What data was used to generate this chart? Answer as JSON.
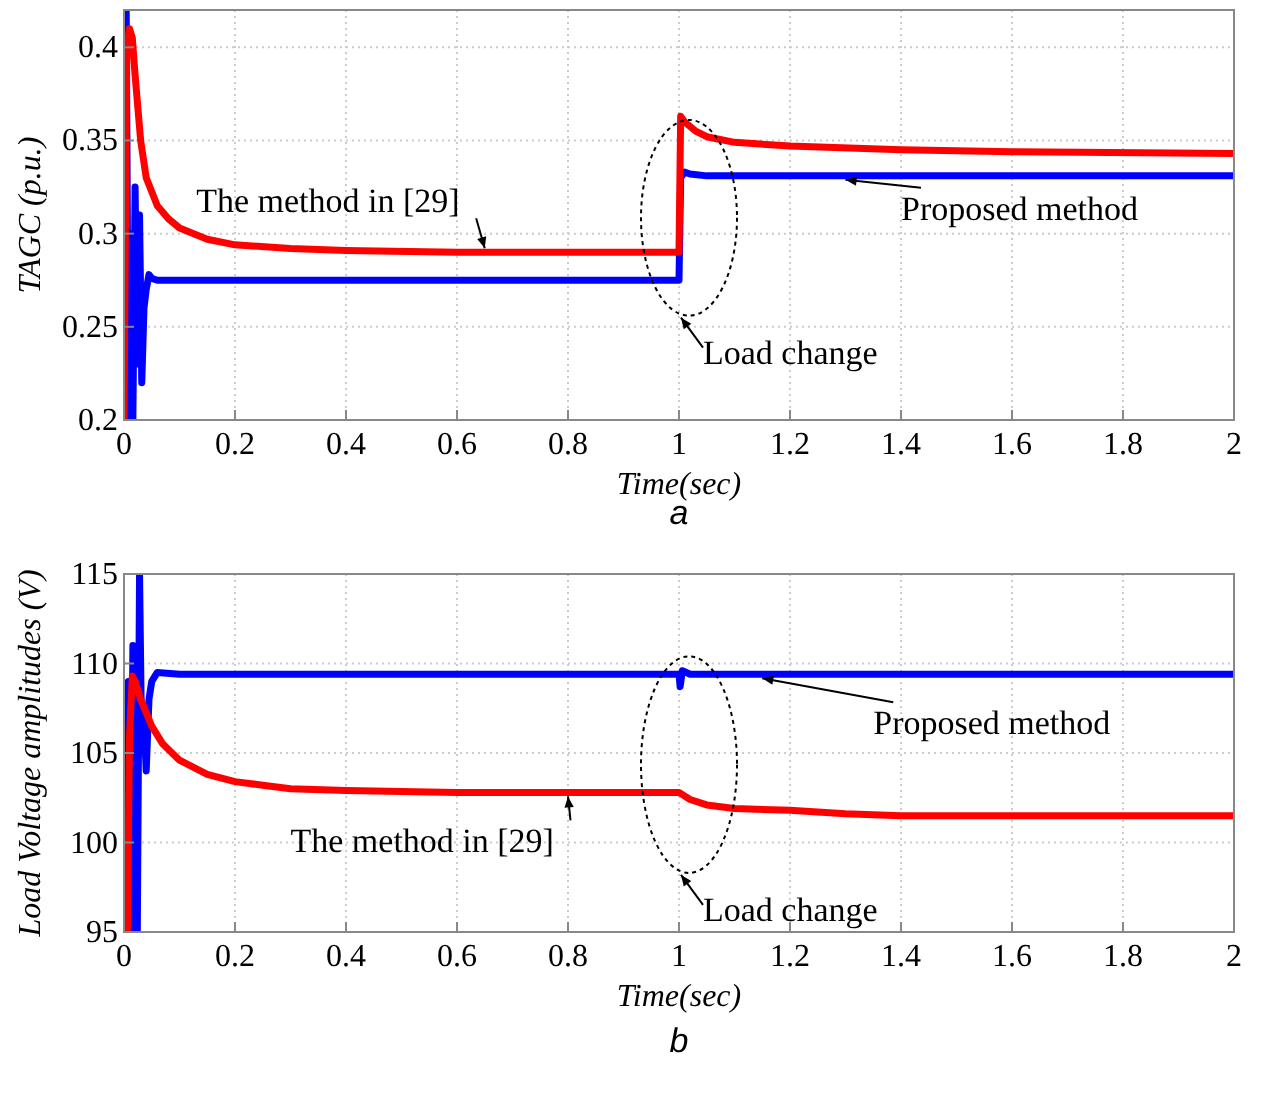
{
  "chart_data": [
    {
      "type": "line",
      "title": "a",
      "xlabel": "Time(sec)",
      "ylabel": "TAGC (p.u.)",
      "xlim": [
        0,
        2
      ],
      "ylim": [
        0.2,
        0.42
      ],
      "xticks": [
        0,
        0.2,
        0.4,
        0.6,
        0.8,
        1,
        1.2,
        1.4,
        1.6,
        1.8,
        2
      ],
      "yticks": [
        0.2,
        0.25,
        0.3,
        0.35,
        0.4
      ],
      "grid": true,
      "marker": "none",
      "line_style": "solid",
      "annotations": [
        "Load change"
      ],
      "series": [
        {
          "name": "The method in [29]",
          "color": "#ff0000",
          "x": [
            0,
            0.005,
            0.01,
            0.015,
            0.02,
            0.03,
            0.04,
            0.06,
            0.08,
            0.1,
            0.15,
            0.2,
            0.3,
            0.4,
            0.6,
            0.8,
            1,
            1.003,
            1.01,
            1.03,
            1.05,
            1.1,
            1.2,
            1.4,
            1.6,
            2
          ],
          "values": [
            0.2,
            0.4,
            0.41,
            0.405,
            0.385,
            0.35,
            0.33,
            0.315,
            0.308,
            0.303,
            0.297,
            0.294,
            0.292,
            0.291,
            0.29,
            0.29,
            0.29,
            0.363,
            0.36,
            0.355,
            0.352,
            0.349,
            0.347,
            0.345,
            0.344,
            0.343
          ]
        },
        {
          "name": "Proposed method",
          "color": "#0000ff",
          "x": [
            0,
            0.004,
            0.008,
            0.012,
            0.016,
            0.02,
            0.024,
            0.028,
            0.032,
            0.036,
            0.04,
            0.045,
            0.05,
            0.06,
            0.1,
            0.4,
            0.8,
            1,
            1.003,
            1.01,
            1.02,
            1.05,
            1.5,
            2
          ],
          "values": [
            0.2,
            0.42,
            0.2,
            0.3,
            0.2,
            0.325,
            0.23,
            0.31,
            0.22,
            0.26,
            0.27,
            0.278,
            0.276,
            0.275,
            0.275,
            0.275,
            0.275,
            0.275,
            0.33,
            0.333,
            0.332,
            0.331,
            0.331,
            0.331
          ]
        }
      ]
    },
    {
      "type": "line",
      "title": "b",
      "xlabel": "Time(sec)",
      "ylabel": "Load Voltage amplitudes (V)",
      "xlim": [
        0,
        2
      ],
      "ylim": [
        95,
        115
      ],
      "xticks": [
        0,
        0.2,
        0.4,
        0.6,
        0.8,
        1,
        1.2,
        1.4,
        1.6,
        1.8,
        2
      ],
      "yticks": [
        95,
        100,
        105,
        110,
        115
      ],
      "grid": true,
      "marker": "none",
      "line_style": "solid",
      "annotations": [
        "Load change"
      ],
      "series": [
        {
          "name": "The method in [29]",
          "color": "#ff0000",
          "x": [
            0.006,
            0.01,
            0.015,
            0.02,
            0.03,
            0.05,
            0.07,
            0.1,
            0.15,
            0.2,
            0.25,
            0.3,
            0.4,
            0.6,
            0.8,
            1,
            1.02,
            1.05,
            1.1,
            1.2,
            1.3,
            1.4,
            1.6,
            2
          ],
          "values": [
            95,
            106,
            109.3,
            109,
            108,
            106.5,
            105.5,
            104.6,
            103.8,
            103.4,
            103.2,
            103,
            102.9,
            102.8,
            102.8,
            102.8,
            102.4,
            102.1,
            101.9,
            101.8,
            101.6,
            101.5,
            101.5,
            101.5
          ]
        },
        {
          "name": "Proposed method",
          "color": "#0000ff",
          "x": [
            0,
            0.004,
            0.008,
            0.012,
            0.016,
            0.02,
            0.024,
            0.028,
            0.032,
            0.036,
            0.04,
            0.045,
            0.05,
            0.06,
            0.1,
            0.5,
            1,
            1.002,
            1.006,
            1.02,
            1.5,
            2
          ],
          "values": [
            95,
            106.5,
            109,
            95,
            111,
            108,
            95,
            115,
            105,
            107,
            104,
            108,
            109,
            109.5,
            109.4,
            109.4,
            109.4,
            108.7,
            109.6,
            109.4,
            109.4,
            109.4
          ]
        }
      ]
    }
  ]
}
